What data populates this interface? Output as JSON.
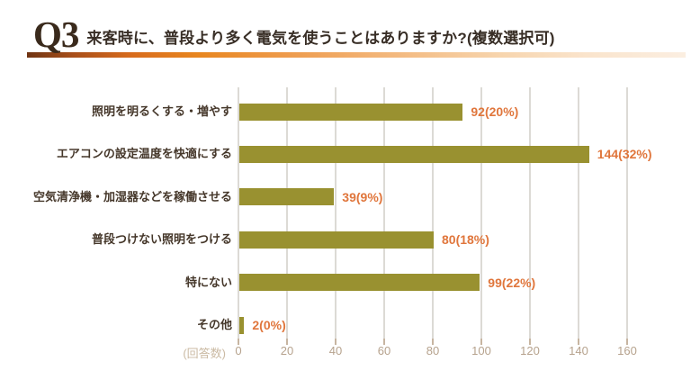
{
  "header": {
    "q_label": "Q3",
    "title": "来客時に、普段より多く電気を使うことはありますか?(複数選択可)",
    "underline_gradient": [
      "#6f3413",
      "#e8861f",
      "#f3b97f",
      "#fbeee1"
    ]
  },
  "chart_data": {
    "type": "bar",
    "orientation": "horizontal",
    "title": "",
    "categories": [
      "照明を明るくする・増やす",
      "エアコンの設定温度を快適にする",
      "空気清浄機・加湿器などを稼働させる",
      "普段つけない照明をつける",
      "特にない",
      "その他"
    ],
    "values": [
      92,
      144,
      39,
      80,
      99,
      2
    ],
    "percentages": [
      20,
      32,
      9,
      18,
      22,
      0
    ],
    "value_labels": [
      "92(20%)",
      "144(32%)",
      "39(9%)",
      "80(18%)",
      "99(22%)",
      "2(0%)"
    ],
    "x_ticks": [
      0,
      20,
      40,
      60,
      80,
      100,
      120,
      140,
      160
    ],
    "xlim": [
      0,
      160
    ],
    "xlabel": "(回答数)",
    "ylabel": "",
    "grid": true,
    "legend": false,
    "colors": {
      "bar": "#999130",
      "value_label": "#e0763c",
      "category_label": "#45372a",
      "tick_label": "#b6a28d",
      "unit_label": "#cbbaa3",
      "gridline": "#dcdad5",
      "tick_mark": "#c7b5a1"
    }
  }
}
